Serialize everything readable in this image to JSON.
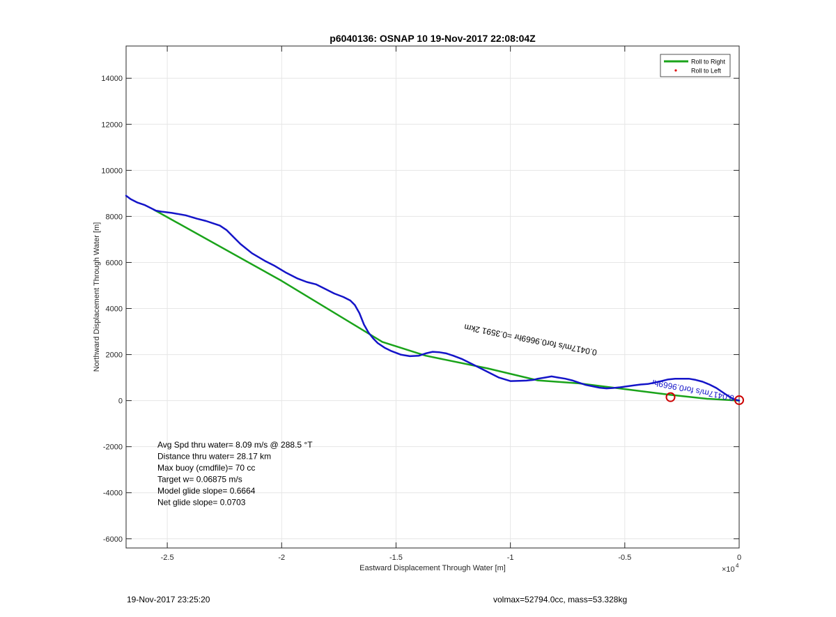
{
  "figure": {
    "footer_left": "19-Nov-2017 23:25:20",
    "footer_right": "volmax=52794.0cc, mass=53.328kg"
  },
  "chart_data": {
    "type": "line",
    "title": "p6040136: OSNAP 10 19-Nov-2017 22:08:04Z",
    "xlabel": "Eastward Displacement Through Water [m]",
    "ylabel": "Northward Displacement Through Water [m]",
    "x_exponent_label": "×10",
    "x_exponent_power": "4",
    "xlim": [
      -26800,
      0
    ],
    "ylim": [
      -6400,
      15400
    ],
    "x_ticks": [
      -25000,
      -20000,
      -15000,
      -10000,
      -5000,
      0
    ],
    "x_tick_labels": [
      "-2.5",
      "-2",
      "-1.5",
      "-1",
      "-0.5",
      "0"
    ],
    "y_ticks": [
      -6000,
      -4000,
      -2000,
      0,
      2000,
      4000,
      6000,
      8000,
      10000,
      12000,
      14000
    ],
    "y_tick_labels": [
      "-6000",
      "-4000",
      "-2000",
      "0",
      "2000",
      "4000",
      "6000",
      "8000",
      "10000",
      "12000",
      "14000"
    ],
    "grid": true,
    "legend_position": "top-right",
    "legend": [
      {
        "label": "Roll to Right",
        "color": "#1aa31a",
        "marker": "line"
      },
      {
        "label": "Roll to Left",
        "color": "#e01010",
        "marker": "dot"
      }
    ],
    "series": [
      {
        "color": "#1aa31a",
        "x": [
          0,
          -1400,
          -3000,
          -5000,
          -7000,
          -8800,
          -11000,
          -13700,
          -15600,
          -20000,
          -25600
        ],
        "y": [
          0,
          80,
          250,
          500,
          750,
          880,
          1400,
          1950,
          2550,
          5200,
          8300
        ]
      },
      {
        "color": "#1414c8",
        "x": [
          -26800,
          -26600,
          -26300,
          -26000,
          -25700,
          -25500,
          -25200,
          -24800,
          -24200,
          -23700,
          -23300,
          -23000,
          -22700,
          -22400,
          -22100,
          -21800,
          -21300,
          -20700,
          -20300,
          -19800,
          -19300,
          -18900,
          -18500,
          -18100,
          -17700,
          -17300,
          -17000,
          -16800,
          -16600,
          -16400,
          -16200,
          -16000,
          -15800,
          -15500,
          -15200,
          -14800,
          -14400,
          -14000,
          -13700,
          -13400,
          -13100,
          -12800,
          -12500,
          -12100,
          -11700,
          -11300,
          -10900,
          -10500,
          -10000,
          -9600,
          -9300,
          -9000,
          -8800,
          -8500,
          -8200,
          -7900,
          -7600,
          -7300,
          -7000,
          -6700,
          -6400,
          -6100,
          -5800,
          -5500,
          -5200,
          -4900,
          -4600,
          -4300,
          -4000,
          -3700,
          -3400,
          -3100,
          -2800,
          -2500,
          -2200,
          -1900,
          -1600,
          -1300,
          -1000,
          -700,
          -400,
          -200,
          0
        ],
        "y": [
          8900,
          8750,
          8600,
          8500,
          8350,
          8250,
          8200,
          8150,
          8050,
          7900,
          7800,
          7700,
          7600,
          7400,
          7100,
          6800,
          6400,
          6050,
          5850,
          5550,
          5300,
          5150,
          5050,
          4850,
          4650,
          4500,
          4350,
          4150,
          3800,
          3300,
          2950,
          2700,
          2500,
          2300,
          2150,
          2000,
          1930,
          1950,
          2050,
          2120,
          2100,
          2050,
          1950,
          1800,
          1600,
          1400,
          1200,
          1000,
          850,
          860,
          870,
          900,
          950,
          1000,
          1050,
          1000,
          950,
          880,
          780,
          680,
          620,
          560,
          530,
          550,
          580,
          620,
          660,
          700,
          720,
          780,
          850,
          920,
          950,
          950,
          950,
          900,
          820,
          700,
          550,
          350,
          150,
          50,
          0
        ]
      }
    ],
    "markers": [
      {
        "shape": "circle",
        "color": "#cc0000",
        "x": -3000,
        "y": 150
      },
      {
        "shape": "circle",
        "color": "#cc0000",
        "x": 0,
        "y": 20
      }
    ],
    "annotations": [
      {
        "text": "0.0417m/s for0.9669hr =0.3591 2km",
        "color": "#000000",
        "x": -6200,
        "y": 2200,
        "rotation_deg": 191
      },
      {
        "text": "0.0417m/s for0.9669hr",
        "color": "#1414c8",
        "x": -200,
        "y": 220,
        "rotation_deg": 191
      }
    ],
    "stats_lines": [
      "Avg Spd thru water=  8.09 m/s @ 288.5 °T",
      "Distance thru water= 28.17 km",
      "Max buoy (cmdfile)= 70 cc",
      "Target w= 0.06875 m/s",
      "Model glide slope= 0.6664",
      "Net glide slope= 0.0703"
    ]
  }
}
